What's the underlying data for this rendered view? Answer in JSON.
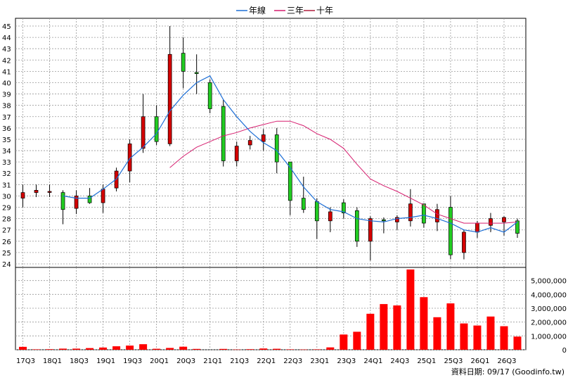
{
  "chart_data": {
    "type": "candlestick",
    "legend": [
      {
        "label": "年線",
        "color": "#1e6fd6"
      },
      {
        "label": "三年",
        "color": "#d61e6f"
      },
      {
        "label": "十年",
        "color": "#b01e3c"
      }
    ],
    "x_ticks": [
      "17Q3",
      "18Q1",
      "18Q3",
      "19Q1",
      "19Q3",
      "20Q1",
      "20Q3",
      "21Q1",
      "21Q3",
      "22Q1",
      "22Q3",
      "23Q1",
      "23Q3",
      "24Q1",
      "24Q3",
      "25Q1",
      "25Q3",
      "26Q1",
      "26Q3"
    ],
    "price_axis": {
      "ylim": [
        24,
        45
      ],
      "ticks": [
        24,
        25,
        26,
        27,
        28,
        29,
        30,
        31,
        32,
        33,
        34,
        35,
        36,
        37,
        38,
        39,
        40,
        41,
        42,
        43,
        44,
        45
      ]
    },
    "volume_axis": {
      "ylim": [
        0,
        6000000
      ],
      "tick_labels": [
        "0",
        "1,000,000",
        "2,000,000",
        "3,000,000",
        "4,000,000",
        "5,000,000"
      ],
      "tick_values": [
        0,
        1000000,
        2000000,
        3000000,
        4000000,
        5000000
      ]
    },
    "up_color": "#d40000",
    "down_color": "#22cc22",
    "candles": [
      {
        "q": "17Q3",
        "open": 29.8,
        "high": 31.0,
        "low": 29.0,
        "close": 30.3
      },
      {
        "q": "17Q4",
        "open": 30.3,
        "high": 31.0,
        "low": 29.9,
        "close": 30.5
      },
      {
        "q": "18Q1",
        "open": 30.4,
        "high": 31.0,
        "low": 29.9,
        "close": 30.4
      },
      {
        "q": "18Q2",
        "open": 30.3,
        "high": 30.5,
        "low": 27.5,
        "close": 28.8
      },
      {
        "q": "18Q3",
        "open": 28.9,
        "high": 30.5,
        "low": 28.4,
        "close": 30.0
      },
      {
        "q": "18Q4",
        "open": 30.0,
        "high": 30.7,
        "low": 29.3,
        "close": 29.4
      },
      {
        "q": "19Q1",
        "open": 29.4,
        "high": 31.0,
        "low": 28.5,
        "close": 30.6
      },
      {
        "q": "19Q2",
        "open": 30.7,
        "high": 32.5,
        "low": 30.4,
        "close": 32.2
      },
      {
        "q": "19Q3",
        "open": 32.2,
        "high": 35.0,
        "low": 31.2,
        "close": 34.6
      },
      {
        "q": "19Q4",
        "open": 34.2,
        "high": 39.0,
        "low": 33.8,
        "close": 37.0
      },
      {
        "q": "20Q1",
        "open": 37.0,
        "high": 38.0,
        "low": 34.5,
        "close": 34.8
      },
      {
        "q": "20Q2",
        "open": 34.6,
        "high": 45.0,
        "low": 34.4,
        "close": 42.5
      },
      {
        "q": "20Q3",
        "open": 42.6,
        "high": 44.0,
        "low": 39.5,
        "close": 41.0
      },
      {
        "q": "20Q4",
        "open": 40.9,
        "high": 42.5,
        "low": 39.0,
        "close": 40.8
      },
      {
        "q": "21Q1",
        "open": 40.0,
        "high": 40.3,
        "low": 37.3,
        "close": 37.7
      },
      {
        "q": "21Q2",
        "open": 37.9,
        "high": 38.5,
        "low": 32.6,
        "close": 33.1
      },
      {
        "q": "21Q3",
        "open": 33.1,
        "high": 34.8,
        "low": 32.6,
        "close": 34.4
      },
      {
        "q": "21Q4",
        "open": 34.5,
        "high": 35.3,
        "low": 34.1,
        "close": 34.9
      },
      {
        "q": "22Q1",
        "open": 34.8,
        "high": 35.9,
        "low": 34.0,
        "close": 35.4
      },
      {
        "q": "22Q2",
        "open": 35.4,
        "high": 36.0,
        "low": 32.0,
        "close": 33.0
      },
      {
        "q": "22Q3",
        "open": 33.0,
        "high": 33.0,
        "low": 28.3,
        "close": 29.6
      },
      {
        "q": "22Q4",
        "open": 29.8,
        "high": 31.7,
        "low": 28.5,
        "close": 28.8
      },
      {
        "q": "23Q1",
        "open": 29.5,
        "high": 29.8,
        "low": 26.2,
        "close": 27.8
      },
      {
        "q": "23Q2",
        "open": 27.8,
        "high": 29.0,
        "low": 26.8,
        "close": 28.6
      },
      {
        "q": "23Q3",
        "open": 29.4,
        "high": 29.7,
        "low": 28.0,
        "close": 28.5
      },
      {
        "q": "23Q4",
        "open": 28.7,
        "high": 29.0,
        "low": 25.5,
        "close": 26.0
      },
      {
        "q": "24Q1",
        "open": 26.0,
        "high": 28.2,
        "low": 24.3,
        "close": 28.0
      },
      {
        "q": "24Q2",
        "open": 27.9,
        "high": 28.1,
        "low": 26.7,
        "close": 27.8
      },
      {
        "q": "24Q3",
        "open": 27.7,
        "high": 28.3,
        "low": 27.0,
        "close": 28.1
      },
      {
        "q": "24Q4",
        "open": 27.8,
        "high": 30.6,
        "low": 27.3,
        "close": 29.3
      },
      {
        "q": "25Q1",
        "open": 29.3,
        "high": 29.3,
        "low": 27.2,
        "close": 27.6
      },
      {
        "q": "25Q2",
        "open": 27.7,
        "high": 29.3,
        "low": 26.9,
        "close": 28.8
      },
      {
        "q": "25Q3",
        "open": 29.0,
        "high": 30.0,
        "low": 24.4,
        "close": 24.8
      },
      {
        "q": "25Q4",
        "open": 25.0,
        "high": 27.0,
        "low": 24.4,
        "close": 26.8
      },
      {
        "q": "26Q1",
        "open": 26.8,
        "high": 27.8,
        "low": 26.3,
        "close": 27.6
      },
      {
        "q": "26Q2",
        "open": 27.4,
        "high": 28.5,
        "low": 26.8,
        "close": 28.0
      },
      {
        "q": "26Q3",
        "open": 27.7,
        "high": 28.2,
        "low": 26.5,
        "close": 28.1
      },
      {
        "q": "26Q4",
        "open": 27.8,
        "high": 28.0,
        "low": 26.3,
        "close": 26.7
      }
    ],
    "ma_year": [
      null,
      null,
      null,
      30.0,
      29.8,
      29.8,
      30.6,
      31.5,
      33.3,
      34.3,
      35.5,
      37.5,
      38.9,
      40.0,
      40.6,
      38.5,
      37.0,
      35.7,
      34.7,
      34.0,
      32.5,
      30.8,
      29.5,
      28.8,
      28.6,
      28.0,
      27.8,
      27.7,
      28.0,
      28.1,
      28.3,
      28.0,
      27.6,
      27.0,
      26.8,
      27.2,
      26.8,
      27.7
    ],
    "ma_3y": [
      null,
      null,
      null,
      null,
      null,
      null,
      null,
      null,
      null,
      null,
      null,
      32.5,
      33.5,
      34.3,
      34.8,
      35.3,
      35.6,
      36.0,
      36.3,
      36.6,
      36.6,
      36.2,
      35.5,
      35.0,
      34.2,
      32.8,
      31.5,
      30.9,
      30.4,
      29.8,
      29.2,
      28.4,
      28.0,
      27.6,
      27.6,
      27.6,
      27.6,
      27.7
    ],
    "volume": [
      210000,
      30000,
      40000,
      80000,
      80000,
      120000,
      160000,
      250000,
      300000,
      400000,
      70000,
      130000,
      220000,
      60000,
      0,
      60000,
      20000,
      40000,
      90000,
      70000,
      30000,
      20000,
      30000,
      170000,
      1100000,
      1300000,
      2600000,
      3300000,
      3200000,
      5800000,
      3800000,
      2350000,
      3350000,
      1900000,
      1750000,
      2400000,
      1700000,
      950000
    ],
    "volume_color": "#ff0000",
    "credit": "資料日期: 09/17  (Goodinfo.tw)"
  }
}
